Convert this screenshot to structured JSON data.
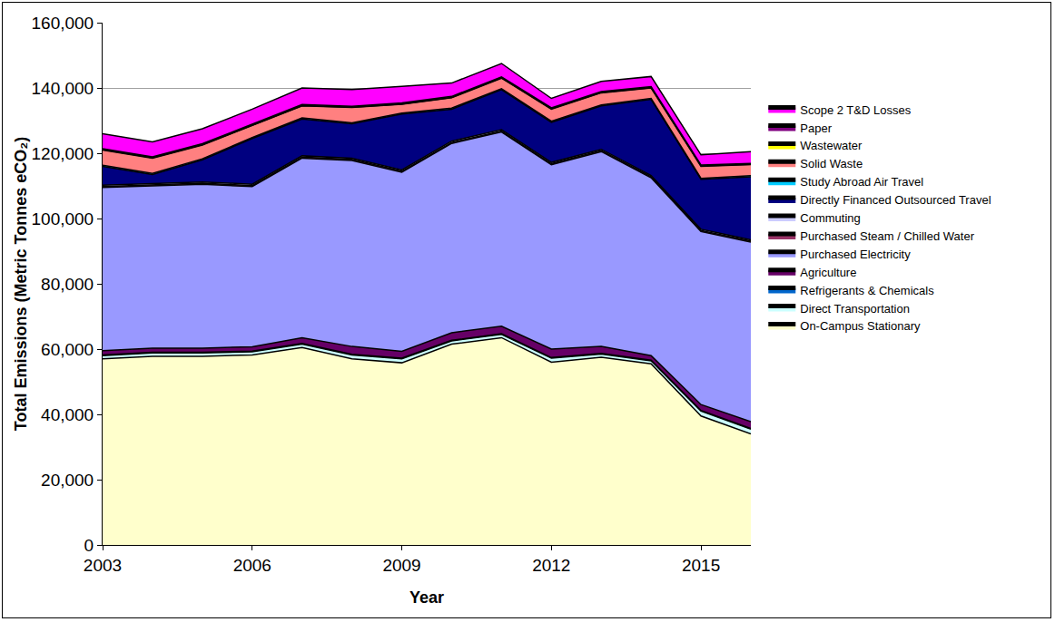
{
  "chart_data": {
    "type": "area",
    "stacked": true,
    "x_label": "Year",
    "y_label": "Total Emissions (Metric Tonnes eCO₂)",
    "x": [
      2003,
      2004,
      2005,
      2006,
      2007,
      2008,
      2009,
      2010,
      2011,
      2012,
      2013,
      2014,
      2015,
      2016
    ],
    "xlim": [
      2003,
      2016
    ],
    "xticks": [
      2003,
      2006,
      2009,
      2012,
      2015
    ],
    "ylim": [
      0,
      160000
    ],
    "yticks": [
      0,
      {
        "value": 20000,
        "label": "20,000"
      },
      {
        "value": 40000,
        "label": "40,000"
      },
      {
        "value": 60000,
        "label": "60,000"
      },
      {
        "value": 80000,
        "label": "80,000"
      },
      {
        "value": 100000,
        "label": "100,000"
      },
      {
        "value": 120000,
        "label": "120,000"
      },
      {
        "value": 140000,
        "label": "140,000"
      },
      {
        "value": 160000,
        "label": "160,000"
      }
    ],
    "grid": true,
    "legend": "right",
    "series": [
      {
        "name": "On-Campus Stationary",
        "color": "#FFFFCC",
        "values": [
          57000,
          57800,
          57800,
          58200,
          60500,
          57000,
          55800,
          61500,
          63500,
          56000,
          57500,
          55500,
          39500,
          34000
        ]
      },
      {
        "name": "Direct Transportation",
        "color": "#CCFFFF",
        "values": [
          1000,
          1000,
          1000,
          1000,
          1000,
          1200,
          1200,
          1000,
          1000,
          1200,
          1000,
          900,
          1500,
          1500
        ]
      },
      {
        "name": "Refrigerants & Chemicals",
        "color": "#0066CC",
        "values": [
          200,
          200,
          200,
          200,
          200,
          200,
          200,
          200,
          200,
          200,
          200,
          200,
          200,
          200
        ]
      },
      {
        "name": "Agriculture",
        "color": "#660066",
        "values": [
          1300,
          1300,
          1300,
          1300,
          1800,
          2400,
          2100,
          2300,
          2300,
          2600,
          2100,
          1400,
          1800,
          2100
        ]
      },
      {
        "name": "Purchased Electricity",
        "color": "#9999FF",
        "values": [
          50000,
          49700,
          50200,
          49100,
          55000,
          57000,
          54900,
          58000,
          59500,
          56500,
          59700,
          54500,
          53000,
          55000
        ]
      },
      {
        "name": "Purchased Steam / Chilled Water",
        "color": "#993366",
        "values": [
          300,
          300,
          300,
          300,
          300,
          300,
          300,
          300,
          300,
          300,
          300,
          300,
          300,
          300
        ]
      },
      {
        "name": "Commuting",
        "color": "#CCCCFF",
        "values": [
          400,
          400,
          400,
          400,
          400,
          400,
          400,
          400,
          400,
          400,
          400,
          400,
          400,
          400
        ]
      },
      {
        "name": "Directly Financed Outsourced Travel",
        "color": "#000080",
        "values": [
          5800,
          2800,
          6800,
          14000,
          11300,
          10500,
          17100,
          9800,
          12300,
          12300,
          13300,
          23300,
          15300,
          19300
        ]
      },
      {
        "name": "Study Abroad Air Travel",
        "color": "#00CCFF",
        "values": [
          300,
          300,
          300,
          300,
          300,
          300,
          300,
          300,
          300,
          300,
          300,
          300,
          300,
          300
        ]
      },
      {
        "name": "Solid Waste",
        "color": "#FF8080",
        "values": [
          4700,
          4700,
          4200,
          3700,
          3700,
          4700,
          2700,
          3200,
          3200,
          3700,
          3700,
          3200,
          3700,
          3400
        ]
      },
      {
        "name": "Wastewater",
        "color": "#FFFF00",
        "values": [
          100,
          100,
          100,
          100,
          100,
          100,
          100,
          100,
          100,
          100,
          100,
          100,
          100,
          100
        ]
      },
      {
        "name": "Paper",
        "color": "#800080",
        "values": [
          300,
          300,
          300,
          300,
          300,
          300,
          300,
          300,
          300,
          300,
          300,
          300,
          300,
          300
        ]
      },
      {
        "name": "Scope 2 T&D Losses",
        "color": "#FF00FF",
        "values": [
          4600,
          4600,
          4600,
          4600,
          5100,
          5100,
          5100,
          4100,
          4100,
          2900,
          3100,
          3100,
          3100,
          3600
        ]
      }
    ]
  }
}
